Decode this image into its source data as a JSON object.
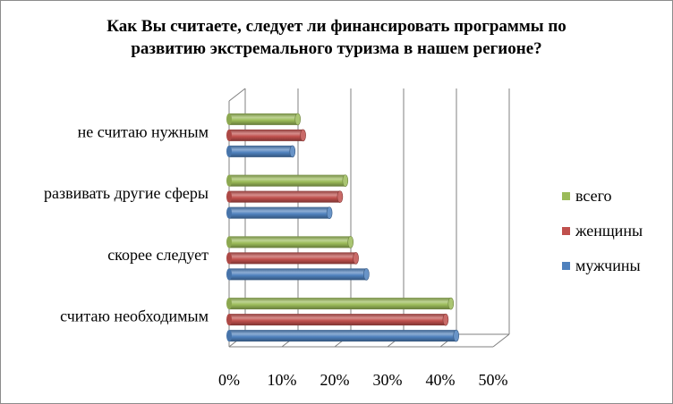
{
  "title_line1": "Как Вы считаете, следует ли финансировать программы по",
  "title_line2": "развитию экстремального туризма  в нашем регионе?",
  "chart_data": {
    "type": "bar",
    "orientation": "horizontal",
    "title": "Как Вы считаете, следует ли финансировать программы по развитию экстремального туризма  в нашем регионе?",
    "categories": [
      "считаю необходимым",
      "скорее следует",
      "развивать другие сферы",
      "не считаю нужным"
    ],
    "series": [
      {
        "name": "мужчины",
        "color": "#4f81bd",
        "values": [
          43,
          26,
          19,
          12
        ]
      },
      {
        "name": "женщины",
        "color": "#c0504d",
        "values": [
          41,
          24,
          21,
          14
        ]
      },
      {
        "name": "всего",
        "color": "#9bbb59",
        "values": [
          42,
          23,
          22,
          13
        ]
      }
    ],
    "xlim": [
      0,
      50
    ],
    "x_ticks": [
      "0%",
      "10%",
      "20%",
      "30%",
      "40%",
      "50%"
    ],
    "legend_order": [
      "всего",
      "женщины",
      "мужчины"
    ],
    "legend_position": "right",
    "grid": true
  }
}
